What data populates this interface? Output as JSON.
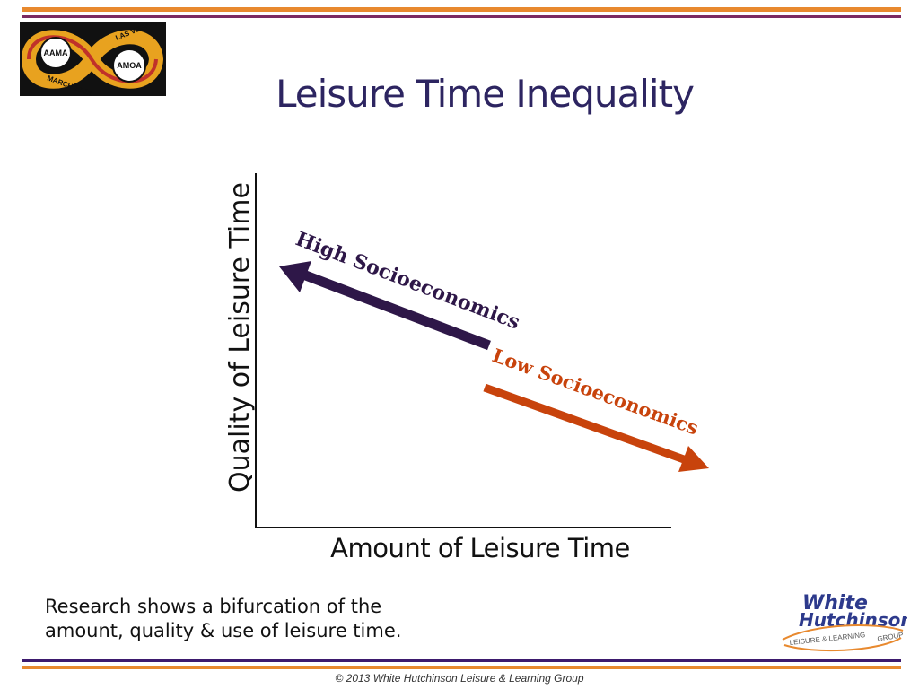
{
  "slide": {
    "title": "Leisure Time Inequality",
    "caption_line1": "Research shows a bifurcation of the",
    "caption_line2": "amount, quality & use of leisure time.",
    "footer": "© 2013 White Hutchinson Leisure & Learning Group"
  },
  "diagram": {
    "y_axis_label": "Quality of Leisure Time",
    "x_axis_label": "Amount of Leisure Time",
    "high_label": "High Socioeconomics",
    "low_label": "Low Socioeconomics",
    "colors": {
      "high": "#2e1748",
      "low": "#c8430c"
    }
  },
  "event_logo": {
    "badge_left": "AAMA",
    "badge_right": "AMOA",
    "location": "LAS VEGAS, NV",
    "dates": "MARCH 20-22"
  },
  "company_logo": {
    "line1": "White",
    "line2": "Hutchinson",
    "tagline": "LEISURE & LEARNING",
    "group": "GROUP"
  }
}
